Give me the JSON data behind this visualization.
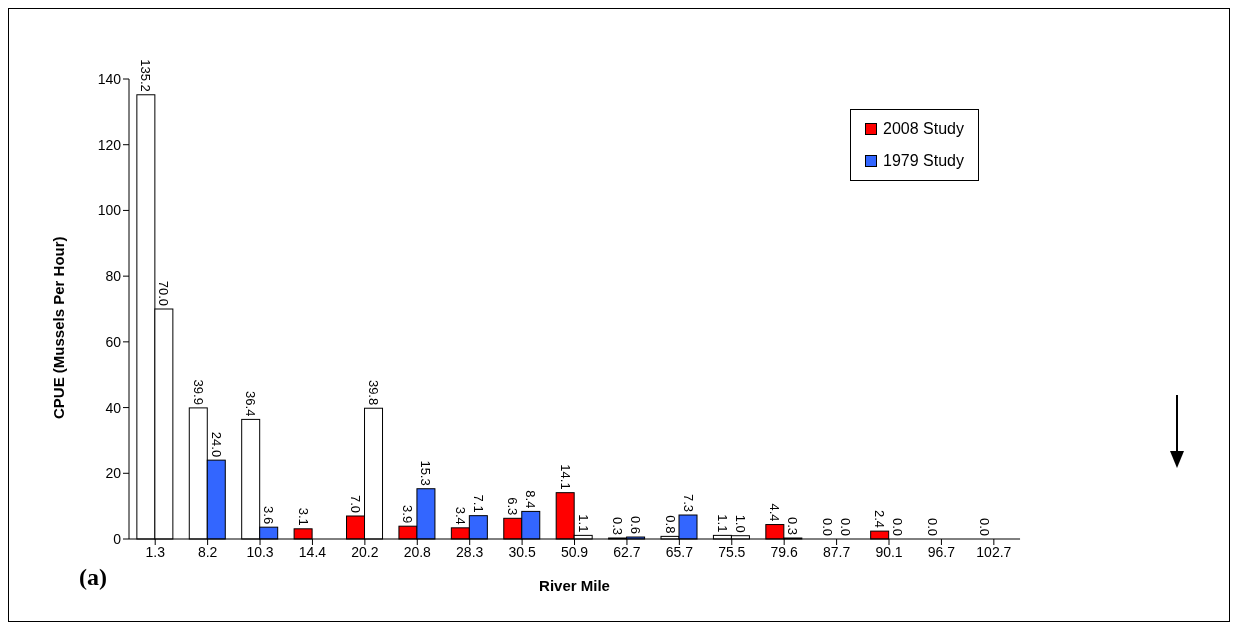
{
  "chart_data": {
    "type": "bar",
    "xlabel": "River Mile",
    "ylabel": "CPUE (Mussels Per Hour)",
    "categories": [
      "1.3",
      "8.2",
      "10.3",
      "14.4",
      "20.2",
      "20.8",
      "28.3",
      "30.5",
      "50.9",
      "62.7",
      "65.7",
      "75.5",
      "79.6",
      "87.7",
      "90.1",
      "96.7",
      "102.7"
    ],
    "series": [
      {
        "name": "2008 Study",
        "color": "#ff0000",
        "values": [
          135.2,
          39.9,
          36.4,
          3.1,
          7.0,
          3.9,
          3.4,
          6.3,
          14.1,
          0.3,
          0.8,
          1.1,
          4.4,
          0.0,
          2.4,
          0.0,
          0.0
        ],
        "colors": [
          "#ffffff",
          "#ffffff",
          "#ffffff",
          "#ff0000",
          "#ff0000",
          "#ff0000",
          "#ff0000",
          "#ff0000",
          "#ff0000",
          "#ff0000",
          "#ffffff",
          "#ffffff",
          "#ff0000",
          "#ff0000",
          "#ff0000",
          "#ff0000",
          "#ff0000"
        ],
        "value_labels": [
          "135.2",
          "39.9",
          "36.4",
          "3.1",
          "7.0",
          "3.9",
          "3.4",
          "6.3",
          "14.1",
          "0.3",
          "0.8",
          "1.1",
          "4.4",
          "0.0",
          "2.4",
          "0.0",
          "0.0"
        ]
      },
      {
        "name": "1979 Study",
        "color": "#3366ff",
        "values": [
          70.0,
          24.0,
          3.6,
          null,
          39.8,
          15.3,
          7.1,
          8.4,
          1.1,
          0.6,
          7.3,
          1.0,
          0.3,
          0.0,
          0.0,
          null,
          null
        ],
        "colors": [
          "#ffffff",
          "#3366ff",
          "#3366ff",
          null,
          "#ffffff",
          "#3366ff",
          "#3366ff",
          "#3366ff",
          "#ffffff",
          "#3366ff",
          "#3366ff",
          "#ffffff",
          "#3366ff",
          "#3366ff",
          "#3366ff",
          null,
          null
        ],
        "value_labels": [
          "70.0",
          "24.0",
          "3.6",
          null,
          "39.8",
          "15.3",
          "7.1",
          "8.4",
          "1.1",
          "0.6",
          "7.3",
          "1.0",
          "0.3",
          "0.0",
          "0.0",
          null,
          null
        ]
      }
    ],
    "ylim": [
      0,
      140
    ],
    "yticks": [
      0,
      20,
      40,
      60,
      80,
      100,
      120,
      140
    ],
    "grid": false,
    "legend": "top right",
    "annotations": [
      "(a)"
    ]
  }
}
